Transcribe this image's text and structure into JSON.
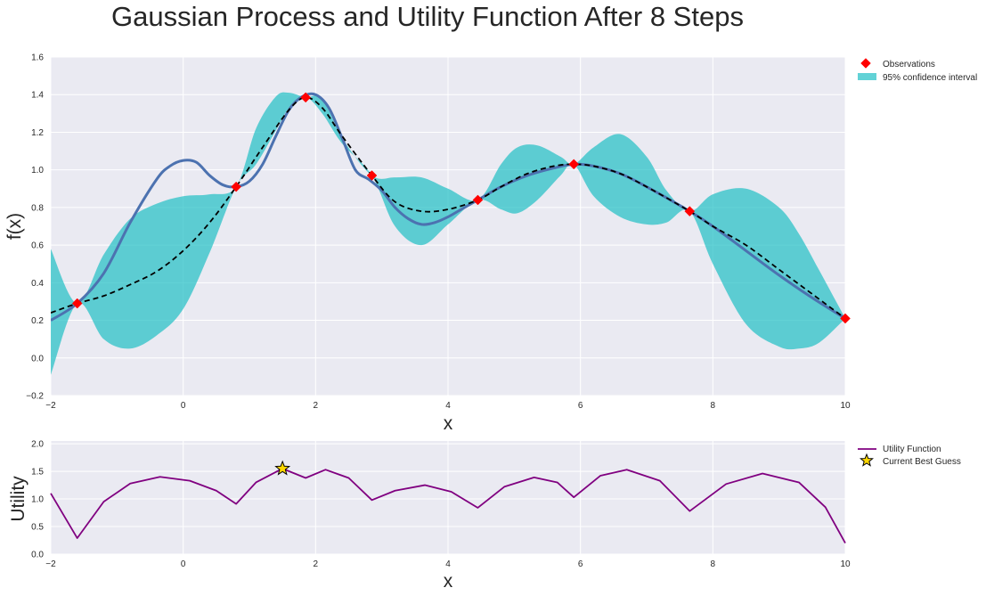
{
  "title": "Gaussian Process and Utility Function After 8 Steps",
  "colors": {
    "axes_bg": "#EAEAF2",
    "grid": "#FFFFFF",
    "target": "#4C72B0",
    "mean": "#000000",
    "ci": "#1FBFC5",
    "obs": "#FF0000",
    "utility": "#800080",
    "star": "#FFD700"
  },
  "chart_data": [
    {
      "type": "line",
      "xlabel": "x",
      "ylabel": "f(x)",
      "xlim": [
        -2,
        10
      ],
      "ylim": [
        -0.2,
        1.6
      ],
      "xticks": [
        -2,
        0,
        2,
        4,
        6,
        8,
        10
      ],
      "xtick_labels": [
        "−2",
        "0",
        "2",
        "4",
        "6",
        "8",
        "10"
      ],
      "yticks": [
        -0.2,
        0.0,
        0.2,
        0.4,
        0.6,
        0.8,
        1.0,
        1.2,
        1.4,
        1.6
      ],
      "ytick_labels": [
        "−0.2",
        "0.0",
        "0.2",
        "0.4",
        "0.6",
        "0.8",
        "1.0",
        "1.2",
        "1.4",
        "1.6"
      ],
      "grid": true,
      "legend_position": "outside-top-right",
      "legend": [
        {
          "label": "Observations",
          "marker": "diamond",
          "color": "#FF0000"
        },
        {
          "label": "95% confidence interval",
          "marker": "patch",
          "color": "#1FBFC5"
        }
      ],
      "observations": {
        "x": [
          -1.6,
          0.8,
          1.85,
          2.85,
          4.45,
          5.9,
          7.65,
          10.0
        ],
        "y": [
          0.29,
          0.91,
          1.385,
          0.97,
          0.84,
          1.03,
          0.78,
          0.21
        ]
      },
      "target": {
        "x": [
          -2,
          -1.6,
          -1.2,
          -0.8,
          -0.4,
          -0.2,
          0.0,
          0.2,
          0.4,
          0.6,
          0.8,
          1.0,
          1.2,
          1.4,
          1.6,
          1.8,
          2.0,
          2.2,
          2.4,
          2.6,
          2.8,
          3.0,
          3.2,
          3.4,
          3.6,
          3.8,
          4.0,
          4.2,
          4.45,
          4.8,
          5.2,
          5.6,
          5.9,
          6.2,
          6.6,
          7.0,
          7.65,
          8.0,
          8.5,
          9.0,
          9.5,
          10.0
        ],
        "y": [
          0.2,
          0.29,
          0.45,
          0.72,
          0.95,
          1.02,
          1.05,
          1.04,
          0.97,
          0.92,
          0.91,
          0.94,
          1.03,
          1.18,
          1.32,
          1.39,
          1.4,
          1.33,
          1.17,
          1.0,
          0.95,
          0.89,
          0.8,
          0.74,
          0.71,
          0.72,
          0.75,
          0.79,
          0.84,
          0.91,
          0.97,
          1.01,
          1.03,
          1.02,
          0.98,
          0.91,
          0.78,
          0.7,
          0.57,
          0.44,
          0.32,
          0.21
        ]
      },
      "mean": {
        "x": [
          -2,
          -1.6,
          -1.2,
          -0.8,
          -0.4,
          0.0,
          0.4,
          0.8,
          1.2,
          1.6,
          1.85,
          2.1,
          2.4,
          2.85,
          3.2,
          3.6,
          4.0,
          4.45,
          4.8,
          5.2,
          5.6,
          5.9,
          6.2,
          6.6,
          7.0,
          7.65,
          8.0,
          8.5,
          9.0,
          9.5,
          10.0
        ],
        "y": [
          0.24,
          0.29,
          0.33,
          0.39,
          0.46,
          0.57,
          0.72,
          0.91,
          1.12,
          1.32,
          1.385,
          1.33,
          1.18,
          0.97,
          0.83,
          0.78,
          0.79,
          0.84,
          0.91,
          0.98,
          1.02,
          1.03,
          1.02,
          0.98,
          0.91,
          0.78,
          0.7,
          0.6,
          0.47,
          0.34,
          0.21
        ]
      },
      "confidence_interval": {
        "x": [
          -2,
          -1.6,
          -1.2,
          -0.8,
          -0.4,
          0.0,
          0.4,
          0.8,
          1.1,
          1.4,
          1.6,
          1.85,
          2.1,
          2.4,
          2.85,
          3.2,
          3.6,
          4.0,
          4.45,
          4.8,
          5.05,
          5.35,
          5.7,
          5.9,
          6.2,
          6.6,
          7.0,
          7.3,
          7.65,
          8.0,
          8.5,
          9.0,
          9.3,
          9.6,
          10.0
        ],
        "upper": [
          0.58,
          0.29,
          0.55,
          0.74,
          0.82,
          0.86,
          0.87,
          0.91,
          1.22,
          1.39,
          1.41,
          1.385,
          1.38,
          1.17,
          0.97,
          0.96,
          0.96,
          0.9,
          0.84,
          1.03,
          1.12,
          1.13,
          1.07,
          1.03,
          1.12,
          1.19,
          1.07,
          0.89,
          0.78,
          0.87,
          0.9,
          0.8,
          0.66,
          0.47,
          0.21
        ],
        "lower": [
          -0.09,
          0.29,
          0.1,
          0.05,
          0.12,
          0.26,
          0.56,
          0.91,
          1.03,
          1.21,
          1.33,
          1.385,
          1.3,
          1.14,
          0.97,
          0.7,
          0.6,
          0.71,
          0.84,
          0.79,
          0.77,
          0.84,
          0.97,
          1.03,
          0.86,
          0.75,
          0.71,
          0.72,
          0.78,
          0.5,
          0.18,
          0.06,
          0.05,
          0.08,
          0.21
        ]
      }
    },
    {
      "type": "line",
      "xlabel": "x",
      "ylabel": "Utility",
      "xlim": [
        -2,
        10
      ],
      "ylim": [
        0.0,
        2.05
      ],
      "xticks": [
        -2,
        0,
        2,
        4,
        6,
        8,
        10
      ],
      "xtick_labels": [
        "−2",
        "0",
        "2",
        "4",
        "6",
        "8",
        "10"
      ],
      "yticks": [
        0.0,
        0.5,
        1.0,
        1.5,
        2.0
      ],
      "ytick_labels": [
        "0.0",
        "0.5",
        "1.0",
        "1.5",
        "2.0"
      ],
      "grid": true,
      "legend_position": "outside-top-right",
      "legend": [
        {
          "label": "Utility Function",
          "marker": "line",
          "color": "#800080"
        },
        {
          "label": "Current Best Guess",
          "marker": "star",
          "color": "#FFD700"
        }
      ],
      "utility": {
        "x": [
          -2,
          -1.6,
          -1.2,
          -0.8,
          -0.35,
          0.1,
          0.5,
          0.8,
          1.1,
          1.5,
          1.85,
          2.15,
          2.5,
          2.85,
          3.2,
          3.65,
          4.05,
          4.45,
          4.85,
          5.3,
          5.65,
          5.9,
          6.3,
          6.7,
          7.2,
          7.65,
          8.2,
          8.75,
          9.3,
          9.7,
          10.0
        ],
        "y": [
          1.1,
          0.29,
          0.95,
          1.28,
          1.4,
          1.33,
          1.15,
          0.91,
          1.3,
          1.55,
          1.38,
          1.53,
          1.38,
          0.98,
          1.15,
          1.25,
          1.13,
          0.84,
          1.22,
          1.39,
          1.3,
          1.03,
          1.42,
          1.53,
          1.33,
          0.78,
          1.27,
          1.46,
          1.3,
          0.85,
          0.2
        ]
      },
      "best_guess": {
        "x": 1.5,
        "y": 1.55
      }
    }
  ]
}
